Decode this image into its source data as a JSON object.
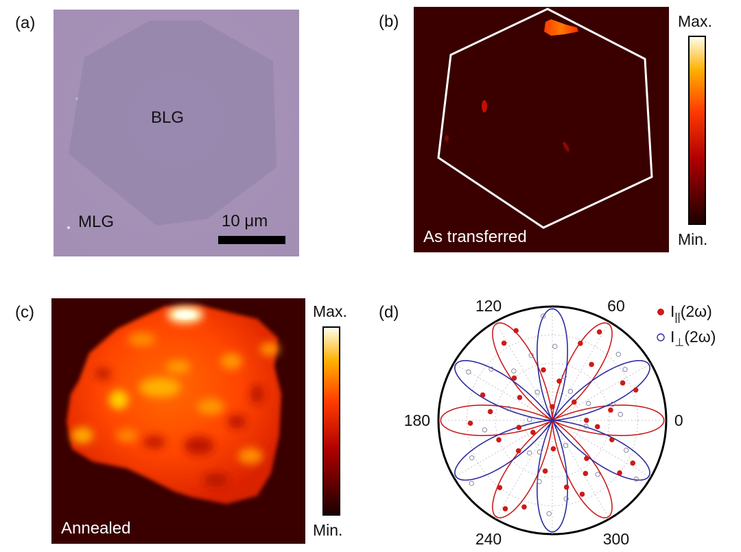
{
  "panels": {
    "a": {
      "label": "(a)",
      "bilayer_label": "BLG",
      "monolayer_label": "MLG",
      "scale_bar_text": "10 μm"
    },
    "b": {
      "label": "(b)",
      "caption": "As transferred",
      "colorbar": {
        "max_label": "Max.",
        "min_label": "Min."
      }
    },
    "c": {
      "label": "(c)",
      "caption": "Annealed",
      "colorbar": {
        "max_label": "Max.",
        "min_label": "Min."
      }
    },
    "d": {
      "label": "(d)",
      "legend": {
        "parallel": {
          "name": "I",
          "sub": "||",
          "suffix": "(2ω)"
        },
        "perp": {
          "name": "I",
          "sub": "⊥",
          "suffix": "(2ω)"
        }
      }
    }
  },
  "colors": {
    "heat_dark": "#3a0000",
    "parallel": "#cc1b1b",
    "perp": "#2a2a9e",
    "optical_bg": "#a690b6"
  },
  "chart_data": {
    "type": "polar",
    "angle_ticks": [
      "0",
      "60",
      "120",
      "180",
      "240",
      "300"
    ],
    "angle_tick_values": [
      0,
      60,
      120,
      180,
      240,
      300
    ],
    "rmax": 1.0,
    "series": [
      {
        "name": "I||(2ω)",
        "marker": "filled-circle",
        "fit": "cos^2(3θ)",
        "points": [
          {
            "theta": 0,
            "r": 0.3
          },
          {
            "theta": 10,
            "r": 0.52
          },
          {
            "theta": 20,
            "r": 0.78
          },
          {
            "theta": 28,
            "r": 0.7
          },
          {
            "theta": 40,
            "r": 0.25
          },
          {
            "theta": 55,
            "r": 0.6
          },
          {
            "theta": 62,
            "r": 0.88
          },
          {
            "theta": 70,
            "r": 0.72
          },
          {
            "theta": 80,
            "r": 0.35
          },
          {
            "theta": 90,
            "r": 0.12
          },
          {
            "theta": 100,
            "r": 0.45
          },
          {
            "theta": 112,
            "r": 0.85
          },
          {
            "theta": 122,
            "r": 0.8
          },
          {
            "theta": 132,
            "r": 0.5
          },
          {
            "theta": 145,
            "r": 0.35
          },
          {
            "theta": 160,
            "r": 0.65
          },
          {
            "theta": 172,
            "r": 0.55
          },
          {
            "theta": 182,
            "r": 0.72
          },
          {
            "theta": 192,
            "r": 0.3
          },
          {
            "theta": 200,
            "r": 0.5
          },
          {
            "theta": 212,
            "r": 0.2
          },
          {
            "theta": 222,
            "r": 0.4
          },
          {
            "theta": 232,
            "r": 0.75
          },
          {
            "theta": 242,
            "r": 0.88
          },
          {
            "theta": 252,
            "r": 0.8
          },
          {
            "theta": 262,
            "r": 0.45
          },
          {
            "theta": 272,
            "r": 0.25
          },
          {
            "theta": 282,
            "r": 0.6
          },
          {
            "theta": 292,
            "r": 0.7
          },
          {
            "theta": 302,
            "r": 0.55
          },
          {
            "theta": 312,
            "r": 0.45
          },
          {
            "theta": 322,
            "r": 0.75
          },
          {
            "theta": 332,
            "r": 0.8
          },
          {
            "theta": 342,
            "r": 0.55
          },
          {
            "theta": 352,
            "r": 0.4
          }
        ]
      },
      {
        "name": "I⊥(2ω)",
        "marker": "open-circle",
        "fit": "sin^2(3θ)",
        "points": [
          {
            "theta": 5,
            "r": 0.6
          },
          {
            "theta": 15,
            "r": 0.55
          },
          {
            "theta": 25,
            "r": 0.35
          },
          {
            "theta": 35,
            "r": 0.78
          },
          {
            "theta": 45,
            "r": 0.82
          },
          {
            "theta": 58,
            "r": 0.3
          },
          {
            "theta": 75,
            "r": 0.4
          },
          {
            "theta": 88,
            "r": 0.65
          },
          {
            "theta": 95,
            "r": 0.92
          },
          {
            "theta": 108,
            "r": 0.6
          },
          {
            "theta": 118,
            "r": 0.28
          },
          {
            "theta": 128,
            "r": 0.55
          },
          {
            "theta": 140,
            "r": 0.7
          },
          {
            "theta": 150,
            "r": 0.85
          },
          {
            "theta": 165,
            "r": 0.4
          },
          {
            "theta": 178,
            "r": 0.2
          },
          {
            "theta": 188,
            "r": 0.6
          },
          {
            "theta": 205,
            "r": 0.78
          },
          {
            "theta": 218,
            "r": 0.9
          },
          {
            "theta": 235,
            "r": 0.35
          },
          {
            "theta": 248,
            "r": 0.3
          },
          {
            "theta": 258,
            "r": 0.55
          },
          {
            "theta": 268,
            "r": 0.82
          },
          {
            "theta": 280,
            "r": 0.7
          },
          {
            "theta": 298,
            "r": 0.25
          },
          {
            "theta": 310,
            "r": 0.62
          },
          {
            "theta": 325,
            "r": 0.9
          },
          {
            "theta": 338,
            "r": 0.7
          },
          {
            "theta": 350,
            "r": 0.3
          }
        ]
      }
    ]
  }
}
